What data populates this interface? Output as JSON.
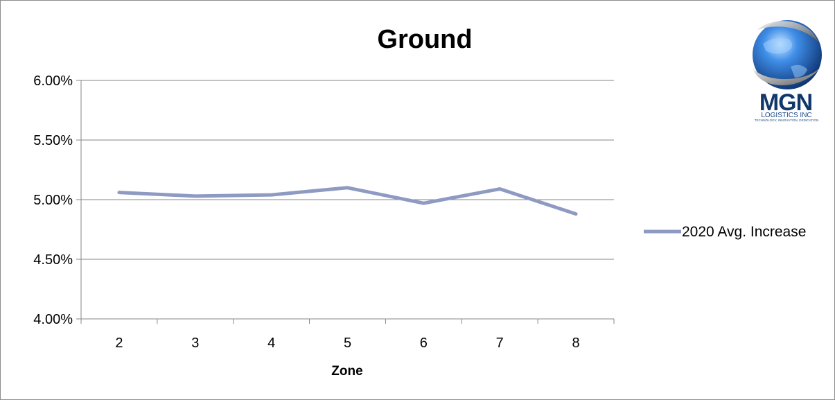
{
  "chart_data": {
    "type": "line",
    "title": "Ground",
    "xlabel": "Zone",
    "ylabel": "",
    "categories": [
      "2",
      "3",
      "4",
      "5",
      "6",
      "7",
      "8"
    ],
    "series": [
      {
        "name": "2020 Avg. Increase",
        "values": [
          5.06,
          5.03,
          5.04,
          5.1,
          4.97,
          5.09,
          4.88
        ],
        "color": "#8e9ac2"
      }
    ],
    "ylim": [
      4.0,
      6.0
    ],
    "yticks": [
      4.0,
      4.5,
      5.0,
      5.5,
      6.0
    ],
    "ytick_labels": [
      "4.00%",
      "4.50%",
      "5.00%",
      "5.50%",
      "6.00%"
    ],
    "grid": true,
    "legend_position": "right"
  },
  "logo": {
    "name": "MGN",
    "subtitle": "LOGISTICS INC",
    "tagline": "TECHNOLOGY, INNOVATION, DEDICATION"
  },
  "colors": {
    "gridline": "#868686",
    "axis": "#868686",
    "series": "#8e9ac2",
    "logo_blue": "#1f5fae"
  }
}
